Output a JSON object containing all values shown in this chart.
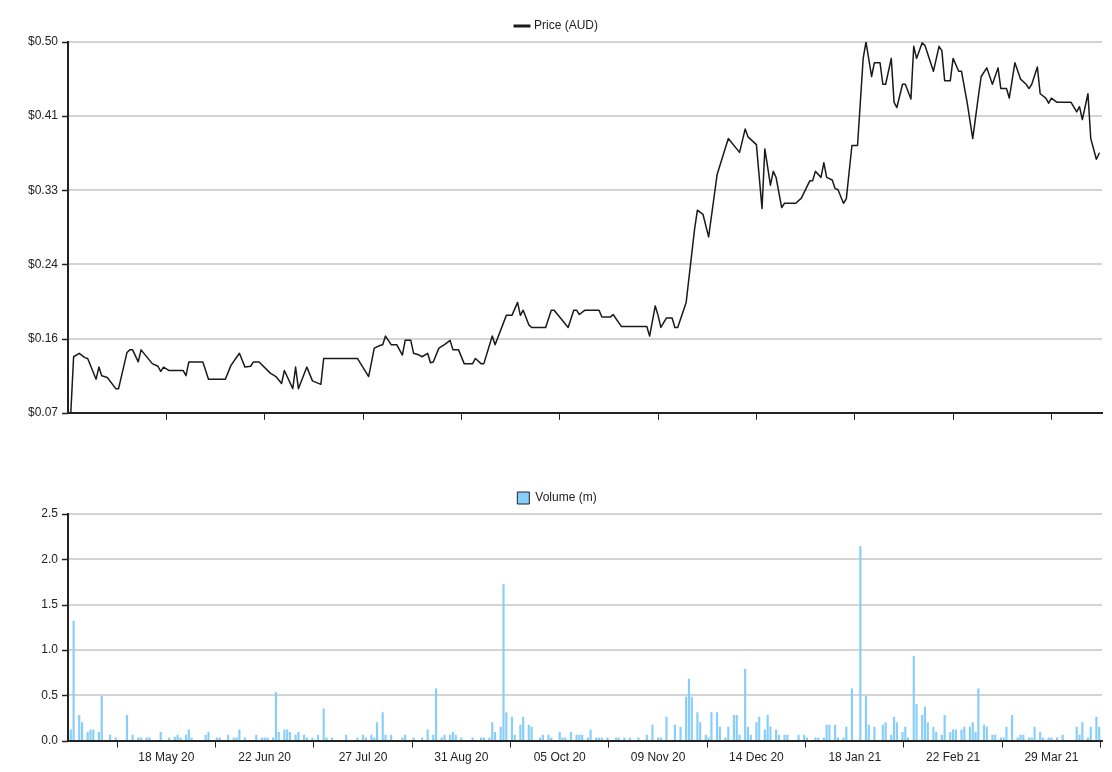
{
  "chart_data": [
    {
      "type": "line",
      "legend": "top",
      "grid": "y",
      "tick_labels": "y",
      "marker": "none",
      "xlim": [
        "2020-04-13",
        "2021-04-16"
      ],
      "xticks": [
        {
          "value": "2020-05-18",
          "label": null
        },
        {
          "value": "2020-06-22",
          "label": null
        },
        {
          "value": "2020-07-27",
          "label": null
        },
        {
          "value": "2020-08-31",
          "label": null
        },
        {
          "value": "2020-10-05",
          "label": null
        },
        {
          "value": "2020-11-09",
          "label": null
        },
        {
          "value": "2020-12-14",
          "label": null
        },
        {
          "value": "2021-01-18",
          "label": null
        },
        {
          "value": "2021-02-22",
          "label": null
        },
        {
          "value": "2021-03-29",
          "label": null
        }
      ],
      "ylim": [
        0.07,
        0.5
      ],
      "yticks": [
        {
          "value": 0.07,
          "label": "$0.07"
        },
        {
          "value": 0.156,
          "label": "$0.16"
        },
        {
          "value": 0.242,
          "label": "$0.24"
        },
        {
          "value": 0.328,
          "label": "$0.33"
        },
        {
          "value": 0.414,
          "label": "$0.41"
        },
        {
          "value": 0.5,
          "label": "$0.50"
        }
      ],
      "x": [
        "2020-04-14",
        "2020-04-15",
        "2020-04-17",
        "2020-04-19",
        "2020-04-20",
        "2020-04-23",
        "2020-04-24",
        "2020-04-25",
        "2020-04-27",
        "2020-04-30",
        "2020-05-01",
        "2020-05-04",
        "2020-05-05",
        "2020-05-06",
        "2020-05-08",
        "2020-05-09",
        "2020-05-13",
        "2020-05-15",
        "2020-05-16",
        "2020-05-17",
        "2020-05-19",
        "2020-05-24",
        "2020-05-25",
        "2020-05-26",
        "2020-05-31",
        "2020-06-02",
        "2020-06-08",
        "2020-06-10",
        "2020-06-13",
        "2020-06-15",
        "2020-06-17",
        "2020-06-18",
        "2020-06-20",
        "2020-06-24",
        "2020-06-26",
        "2020-06-28",
        "2020-06-29",
        "2020-07-02",
        "2020-07-03",
        "2020-07-04",
        "2020-07-07",
        "2020-07-09",
        "2020-07-12",
        "2020-07-13",
        "2020-07-25",
        "2020-07-29",
        "2020-07-31",
        "2020-08-02",
        "2020-08-03",
        "2020-08-04",
        "2020-08-06",
        "2020-08-08",
        "2020-08-10",
        "2020-08-11",
        "2020-08-13",
        "2020-08-14",
        "2020-08-16",
        "2020-08-17",
        "2020-08-19",
        "2020-08-20",
        "2020-08-21",
        "2020-08-23",
        "2020-08-25",
        "2020-08-27",
        "2020-08-28",
        "2020-08-30",
        "2020-09-01",
        "2020-09-04",
        "2020-09-05",
        "2020-09-07",
        "2020-09-08",
        "2020-09-11",
        "2020-09-12",
        "2020-09-16",
        "2020-09-18",
        "2020-09-20",
        "2020-09-21",
        "2020-09-22",
        "2020-09-24",
        "2020-09-25",
        "2020-09-30",
        "2020-10-02",
        "2020-10-03",
        "2020-10-06",
        "2020-10-08",
        "2020-10-10",
        "2020-10-11",
        "2020-10-12",
        "2020-10-14",
        "2020-10-19",
        "2020-10-20",
        "2020-10-23",
        "2020-10-24",
        "2020-10-27",
        "2020-11-05",
        "2020-11-06",
        "2020-11-08",
        "2020-11-09",
        "2020-11-10",
        "2020-11-12",
        "2020-11-14",
        "2020-11-15",
        "2020-11-16",
        "2020-11-19",
        "2020-11-22",
        "2020-11-23",
        "2020-11-25",
        "2020-11-27",
        "2020-11-30",
        "2020-12-04",
        "2020-12-08",
        "2020-12-10",
        "2020-12-11",
        "2020-12-14",
        "2020-12-16",
        "2020-12-17",
        "2020-12-19",
        "2020-12-20",
        "2020-12-21",
        "2020-12-23",
        "2020-12-24",
        "2020-12-28",
        "2020-12-30",
        "2021-01-02",
        "2021-01-03",
        "2021-01-04",
        "2021-01-06",
        "2021-01-07",
        "2021-01-08",
        "2021-01-10",
        "2021-01-11",
        "2021-01-12",
        "2021-01-14",
        "2021-01-15",
        "2021-01-17",
        "2021-01-19",
        "2021-01-21",
        "2021-01-22",
        "2021-01-24",
        "2021-01-25",
        "2021-01-27",
        "2021-01-28",
        "2021-01-29",
        "2021-01-31",
        "2021-02-01",
        "2021-02-02",
        "2021-02-04",
        "2021-02-05",
        "2021-02-07",
        "2021-02-08",
        "2021-02-09",
        "2021-02-11",
        "2021-02-12",
        "2021-02-15",
        "2021-02-17",
        "2021-02-18",
        "2021-02-19",
        "2021-02-21",
        "2021-02-22",
        "2021-02-24",
        "2021-02-25",
        "2021-02-27",
        "2021-03-01",
        "2021-03-03",
        "2021-03-04",
        "2021-03-06",
        "2021-03-08",
        "2021-03-10",
        "2021-03-11",
        "2021-03-13",
        "2021-03-14",
        "2021-03-16",
        "2021-03-18",
        "2021-03-20",
        "2021-03-21",
        "2021-03-22",
        "2021-03-24",
        "2021-03-25",
        "2021-03-27",
        "2021-03-28",
        "2021-03-29",
        "2021-03-31",
        "2021-04-05",
        "2021-04-07",
        "2021-04-08",
        "2021-04-09",
        "2021-04-11",
        "2021-04-12",
        "2021-04-14",
        "2021-04-15"
      ],
      "series": [
        {
          "name": "Price (AUD)",
          "color": "#1a1a1a",
          "values": [
            0.07,
            0.135,
            0.139,
            0.134,
            0.133,
            0.109,
            0.123,
            0.113,
            0.111,
            0.098,
            0.098,
            0.14,
            0.143,
            0.143,
            0.129,
            0.143,
            0.127,
            0.124,
            0.118,
            0.123,
            0.119,
            0.119,
            0.113,
            0.129,
            0.129,
            0.109,
            0.109,
            0.125,
            0.139,
            0.123,
            0.124,
            0.129,
            0.129,
            0.116,
            0.112,
            0.104,
            0.119,
            0.098,
            0.123,
            0.098,
            0.123,
            0.107,
            0.103,
            0.133,
            0.133,
            0.112,
            0.145,
            0.148,
            0.149,
            0.159,
            0.149,
            0.149,
            0.137,
            0.154,
            0.154,
            0.139,
            0.137,
            0.135,
            0.139,
            0.128,
            0.129,
            0.145,
            0.149,
            0.154,
            0.143,
            0.143,
            0.127,
            0.127,
            0.133,
            0.127,
            0.127,
            0.159,
            0.149,
            0.183,
            0.183,
            0.198,
            0.183,
            0.189,
            0.172,
            0.169,
            0.169,
            0.189,
            0.189,
            0.177,
            0.169,
            0.189,
            0.189,
            0.184,
            0.189,
            0.189,
            0.181,
            0.181,
            0.184,
            0.17,
            0.17,
            0.159,
            0.194,
            0.183,
            0.169,
            0.18,
            0.18,
            0.169,
            0.169,
            0.198,
            0.283,
            0.305,
            0.3,
            0.274,
            0.346,
            0.388,
            0.372,
            0.399,
            0.39,
            0.381,
            0.307,
            0.376,
            0.334,
            0.35,
            0.343,
            0.308,
            0.313,
            0.313,
            0.319,
            0.339,
            0.339,
            0.35,
            0.343,
            0.36,
            0.343,
            0.34,
            0.33,
            0.329,
            0.313,
            0.318,
            0.38,
            0.38,
            0.481,
            0.5,
            0.46,
            0.476,
            0.476,
            0.451,
            0.451,
            0.481,
            0.43,
            0.424,
            0.451,
            0.451,
            0.434,
            0.495,
            0.481,
            0.499,
            0.496,
            0.466,
            0.495,
            0.49,
            0.455,
            0.455,
            0.481,
            0.466,
            0.466,
            0.43,
            0.388,
            0.437,
            0.46,
            0.47,
            0.451,
            0.47,
            0.446,
            0.446,
            0.435,
            0.476,
            0.457,
            0.451,
            0.446,
            0.451,
            0.471,
            0.44,
            0.435,
            0.429,
            0.435,
            0.43,
            0.43,
            0.419,
            0.425,
            0.41,
            0.44,
            0.388,
            0.364,
            0.371
          ]
        }
      ]
    },
    {
      "type": "bar",
      "legend": "top",
      "grid": "y",
      "xlim": [
        "2020-04-13",
        "2021-04-16"
      ],
      "xticks": [
        {
          "value": "2020-05-18",
          "label": "18 May 20"
        },
        {
          "value": "2020-06-22",
          "label": "22 Jun 20"
        },
        {
          "value": "2020-07-27",
          "label": "27 Jul 20"
        },
        {
          "value": "2020-08-31",
          "label": "31 Aug 20"
        },
        {
          "value": "2020-10-05",
          "label": "05 Oct 20"
        },
        {
          "value": "2020-11-09",
          "label": "09 Nov 20"
        },
        {
          "value": "2020-12-14",
          "label": "14 Dec 20"
        },
        {
          "value": "2021-01-18",
          "label": "18 Jan 21"
        },
        {
          "value": "2021-02-22",
          "label": "22 Feb 21"
        },
        {
          "value": "2021-03-29",
          "label": "29 Mar 21"
        }
      ],
      "ylim": [
        0,
        2.5
      ],
      "yticks": [
        {
          "value": 0,
          "label": "0.0"
        },
        {
          "value": 0.5,
          "label": "0.5"
        },
        {
          "value": 1,
          "label": "1.0"
        },
        {
          "value": 1.5,
          "label": "1.5"
        },
        {
          "value": 2,
          "label": "2.0"
        },
        {
          "value": 2.5,
          "label": "2.5"
        }
      ],
      "x": [
        "2020-04-14",
        "2020-04-15",
        "2020-04-17",
        "2020-04-18",
        "2020-04-20",
        "2020-04-21",
        "2020-04-22",
        "2020-04-24",
        "2020-04-25",
        "2020-04-28",
        "2020-04-30",
        "2020-05-04",
        "2020-05-06",
        "2020-05-08",
        "2020-05-09",
        "2020-05-11",
        "2020-05-12",
        "2020-05-16",
        "2020-05-19",
        "2020-05-21",
        "2020-05-22",
        "2020-05-23",
        "2020-05-25",
        "2020-05-26",
        "2020-05-27",
        "2020-06-01",
        "2020-06-02",
        "2020-06-05",
        "2020-06-06",
        "2020-06-09",
        "2020-06-11",
        "2020-06-12",
        "2020-06-13",
        "2020-06-15",
        "2020-06-19",
        "2020-06-21",
        "2020-06-22",
        "2020-06-23",
        "2020-06-25",
        "2020-06-26",
        "2020-06-27",
        "2020-06-29",
        "2020-06-30",
        "2020-07-01",
        "2020-07-03",
        "2020-07-04",
        "2020-07-06",
        "2020-07-07",
        "2020-07-09",
        "2020-07-11",
        "2020-07-13",
        "2020-07-14",
        "2020-07-16",
        "2020-07-21",
        "2020-07-25",
        "2020-07-27",
        "2020-07-28",
        "2020-07-30",
        "2020-07-31",
        "2020-08-01",
        "2020-08-03",
        "2020-08-04",
        "2020-08-06",
        "2020-08-10",
        "2020-08-11",
        "2020-08-14",
        "2020-08-17",
        "2020-08-19",
        "2020-08-21",
        "2020-08-22",
        "2020-08-24",
        "2020-08-25",
        "2020-08-27",
        "2020-08-28",
        "2020-08-29",
        "2020-08-31",
        "2020-09-04",
        "2020-09-07",
        "2020-09-08",
        "2020-09-10",
        "2020-09-11",
        "2020-09-12",
        "2020-09-14",
        "2020-09-15",
        "2020-09-16",
        "2020-09-18",
        "2020-09-19",
        "2020-09-21",
        "2020-09-22",
        "2020-09-24",
        "2020-09-25",
        "2020-09-28",
        "2020-09-29",
        "2020-10-01",
        "2020-10-02",
        "2020-10-05",
        "2020-10-06",
        "2020-10-07",
        "2020-10-09",
        "2020-10-11",
        "2020-10-12",
        "2020-10-13",
        "2020-10-15",
        "2020-10-16",
        "2020-10-18",
        "2020-10-19",
        "2020-10-20",
        "2020-10-22",
        "2020-10-25",
        "2020-10-26",
        "2020-10-28",
        "2020-10-30",
        "2020-11-02",
        "2020-11-05",
        "2020-11-07",
        "2020-11-09",
        "2020-11-10",
        "2020-11-12",
        "2020-11-15",
        "2020-11-17",
        "2020-11-19",
        "2020-11-20",
        "2020-11-21",
        "2020-11-23",
        "2020-11-24",
        "2020-11-26",
        "2020-11-27",
        "2020-11-28",
        "2020-11-30",
        "2020-12-01",
        "2020-12-03",
        "2020-12-04",
        "2020-12-06",
        "2020-12-07",
        "2020-12-08",
        "2020-12-10",
        "2020-12-11",
        "2020-12-12",
        "2020-12-14",
        "2020-12-15",
        "2020-12-17",
        "2020-12-18",
        "2020-12-19",
        "2020-12-21",
        "2020-12-22",
        "2020-12-24",
        "2020-12-25",
        "2020-12-29",
        "2020-12-31",
        "2021-01-01",
        "2021-01-04",
        "2021-01-05",
        "2021-01-07",
        "2021-01-08",
        "2021-01-09",
        "2021-01-11",
        "2021-01-12",
        "2021-01-14",
        "2021-01-15",
        "2021-01-17",
        "2021-01-20",
        "2021-01-22",
        "2021-01-23",
        "2021-01-25",
        "2021-01-28",
        "2021-01-29",
        "2021-01-31",
        "2021-02-01",
        "2021-02-02",
        "2021-02-04",
        "2021-02-05",
        "2021-02-06",
        "2021-02-08",
        "2021-02-09",
        "2021-02-11",
        "2021-02-12",
        "2021-02-13",
        "2021-02-15",
        "2021-02-16",
        "2021-02-18",
        "2021-02-19",
        "2021-02-21",
        "2021-02-22",
        "2021-02-23",
        "2021-02-25",
        "2021-02-26",
        "2021-02-28",
        "2021-03-01",
        "2021-03-02",
        "2021-03-03",
        "2021-03-05",
        "2021-03-06",
        "2021-03-08",
        "2021-03-09",
        "2021-03-11",
        "2021-03-12",
        "2021-03-13",
        "2021-03-15",
        "2021-03-17",
        "2021-03-18",
        "2021-03-19",
        "2021-03-21",
        "2021-03-22",
        "2021-03-23",
        "2021-03-25",
        "2021-03-26",
        "2021-03-28",
        "2021-03-29",
        "2021-03-31",
        "2021-04-02",
        "2021-04-07",
        "2021-04-08",
        "2021-04-09",
        "2021-04-11",
        "2021-04-12",
        "2021-04-14",
        "2021-04-15"
      ],
      "series": [
        {
          "name": "Volume (m)",
          "color": "#87cefa",
          "values": [
            0.12,
            1.32,
            0.28,
            0.2,
            0.09,
            0.12,
            0.12,
            0.09,
            0.49,
            0.06,
            0.03,
            0.28,
            0.06,
            0.03,
            0.03,
            0.03,
            0.03,
            0.09,
            0.03,
            0.04,
            0.06,
            0.03,
            0.06,
            0.12,
            0.03,
            0.06,
            0.09,
            0.03,
            0.03,
            0.06,
            0.03,
            0.03,
            0.12,
            0.03,
            0.06,
            0.03,
            0.03,
            0.03,
            0.03,
            0.53,
            0.09,
            0.12,
            0.12,
            0.09,
            0.06,
            0.09,
            0.06,
            0.03,
            0.03,
            0.06,
            0.35,
            0.03,
            0.03,
            0.06,
            0.03,
            0.06,
            0.03,
            0.06,
            0.03,
            0.2,
            0.31,
            0.06,
            0.06,
            0.03,
            0.06,
            0.03,
            0.03,
            0.12,
            0.06,
            0.57,
            0.03,
            0.06,
            0.06,
            0.09,
            0.06,
            0.03,
            0.03,
            0.03,
            0.03,
            0.03,
            0.2,
            0.09,
            0.15,
            1.72,
            0.31,
            0.26,
            0.06,
            0.17,
            0.26,
            0.17,
            0.15,
            0.03,
            0.06,
            0.06,
            0.03,
            0.09,
            0.03,
            0.03,
            0.09,
            0.06,
            0.06,
            0.06,
            0.03,
            0.12,
            0.03,
            0.03,
            0.03,
            0.03,
            0.03,
            0.03,
            0.03,
            0.03,
            0.03,
            0.06,
            0.17,
            0.03,
            0.03,
            0.26,
            0.17,
            0.15,
            0.48,
            0.68,
            0.48,
            0.31,
            0.2,
            0.06,
            0.03,
            0.31,
            0.31,
            0.15,
            0.03,
            0.15,
            0.28,
            0.28,
            0.06,
            0.79,
            0.15,
            0.06,
            0.2,
            0.26,
            0.12,
            0.28,
            0.15,
            0.12,
            0.06,
            0.06,
            0.06,
            0.06,
            0.06,
            0.03,
            0.03,
            0.03,
            0.03,
            0.17,
            0.17,
            0.17,
            0.03,
            0.03,
            0.15,
            0.57,
            2.14,
            0.49,
            0.17,
            0.15,
            0.17,
            0.2,
            0.06,
            0.26,
            0.2,
            0.09,
            0.15,
            0.03,
            0.93,
            0.4,
            0.28,
            0.37,
            0.2,
            0.15,
            0.09,
            0.06,
            0.28,
            0.09,
            0.12,
            0.12,
            0.12,
            0.15,
            0.15,
            0.2,
            0.09,
            0.57,
            0.17,
            0.15,
            0.06,
            0.06,
            0.03,
            0.03,
            0.15,
            0.28,
            0.03,
            0.06,
            0.06,
            0.03,
            0.03,
            0.15,
            0.09,
            0.03,
            0.03,
            0.03,
            0.03,
            0.06,
            0.15,
            0.06,
            0.2,
            0.03,
            0.15,
            0.26,
            0.15
          ]
        }
      ]
    }
  ]
}
